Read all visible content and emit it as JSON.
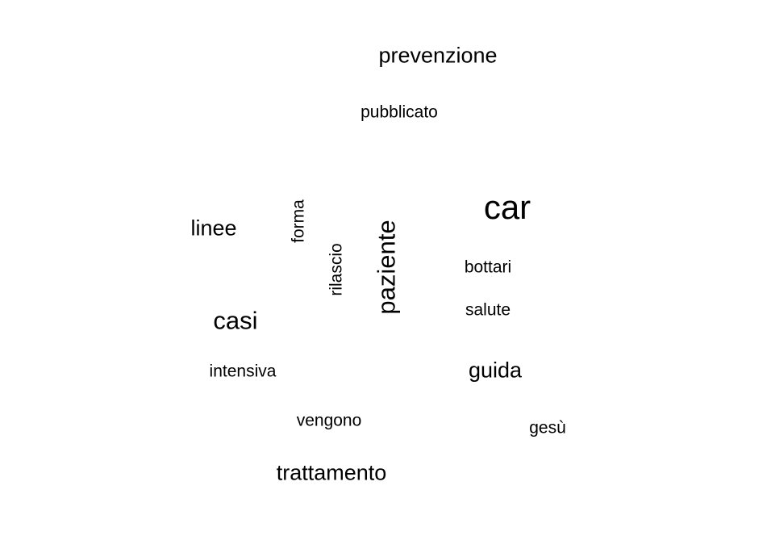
{
  "word_cloud": {
    "words": [
      {
        "text": "prevenzione"
      },
      {
        "text": "pubblicato"
      },
      {
        "text": "car"
      },
      {
        "text": "linee"
      },
      {
        "text": "forma",
        "orientation": "vertical"
      },
      {
        "text": "rilascio",
        "orientation": "vertical"
      },
      {
        "text": "paziente",
        "orientation": "vertical"
      },
      {
        "text": "bottari"
      },
      {
        "text": "salute"
      },
      {
        "text": "casi"
      },
      {
        "text": "intensiva"
      },
      {
        "text": "guida"
      },
      {
        "text": "vengono"
      },
      {
        "text": "gesù"
      },
      {
        "text": "trattamento"
      }
    ],
    "text_color": "#000000",
    "background_color": "#ffffff"
  }
}
